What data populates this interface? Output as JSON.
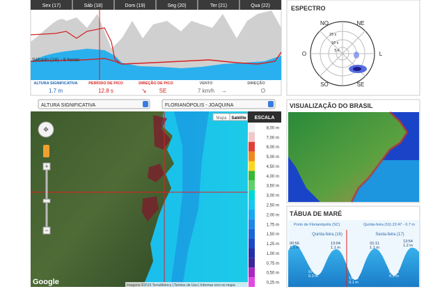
{
  "forecast": {
    "days": [
      "Sex (17)",
      "Sáb (18)",
      "Dom (19)",
      "Seg (20)",
      "Ter (21)",
      "Qua (22)"
    ],
    "hover_label": "Sábado (18) - 9 horas",
    "legend": [
      {
        "label": "ALTURA SIGNIFICATIVA",
        "value": "1.7 m",
        "color": "#1a5fb4"
      },
      {
        "label": "PERÍODO DE PICO",
        "value": "12.8 s",
        "color": "#d62020"
      },
      {
        "label": "DIREÇÃO DE PICO",
        "value": "SE",
        "color": "#d62020"
      },
      {
        "label": "VENTO",
        "value": "7 km/h",
        "color": "#666666"
      },
      {
        "label": "DIREÇÃO",
        "value": "O",
        "color": "#666666"
      }
    ]
  },
  "spectrum": {
    "title": "ESPECTRO",
    "directions": [
      "NO",
      "NE",
      "O",
      "L",
      "SO",
      "SE"
    ],
    "periods": [
      "15 s",
      "10 s",
      "5 s"
    ]
  },
  "selectors": [
    "ALTURA SIGNIFICATIVA",
    "FLORIANÓPOLIS - JOAQUINA"
  ],
  "map": {
    "buttons": [
      "Mapa",
      "Satélite"
    ],
    "scale_title": "ESCALA",
    "scale": [
      {
        "label": "8,00 m",
        "color": "#f4f4f4"
      },
      {
        "label": "7,00 m",
        "color": "#f0c8c8"
      },
      {
        "label": "6,00 m",
        "color": "#e0403a"
      },
      {
        "label": "5,00 m",
        "color": "#f08a1e"
      },
      {
        "label": "4,50 m",
        "color": "#f8d820"
      },
      {
        "label": "4,00 m",
        "color": "#38b838"
      },
      {
        "label": "3,50 m",
        "color": "#5cd06a"
      },
      {
        "label": "3,00 m",
        "color": "#00d6d6"
      },
      {
        "label": "2,50 m",
        "color": "#16c8ee"
      },
      {
        "label": "2,00 m",
        "color": "#18aaf0"
      },
      {
        "label": "1,75 m",
        "color": "#1e88e6"
      },
      {
        "label": "1,50 m",
        "color": "#1a66d6"
      },
      {
        "label": "1,25 m",
        "color": "#1c48c4"
      },
      {
        "label": "1,00 m",
        "color": "#2230a8"
      },
      {
        "label": "0,75 m",
        "color": "#3a2898"
      },
      {
        "label": "0,50 m",
        "color": "#a828c0"
      },
      {
        "label": "0,25 m",
        "color": "#e04ae0"
      }
    ],
    "logo": "Google",
    "attribution": "Imagens ©2015 TerraMetrics | Termos de Uso | Informar erro no mapa"
  },
  "brazil": {
    "title": "VISUALIZAÇÃO DO BRASIL"
  },
  "tide": {
    "title": "TÁBUA DE MARÉ",
    "port": "Porto de Florianópolis (SC)",
    "current": "Quinta-feira (16) 22:47 - 0.7 m",
    "days": [
      "Quinta-feira (16)",
      "Sexta-feira (17)"
    ],
    "extremes": [
      {
        "time": "00:56",
        "height": "1.1 m"
      },
      {
        "time": "07:47",
        "height": "0.3 m"
      },
      {
        "time": "13:04",
        "height": "1.1 m"
      },
      {
        "time": "19:43",
        "height": "0.1 m"
      },
      {
        "time": "01:11",
        "height": "1.1 m"
      },
      {
        "time": "08:21",
        "height": "0.3 m"
      },
      {
        "time": "13:54",
        "height": "1.2 m"
      }
    ]
  }
}
